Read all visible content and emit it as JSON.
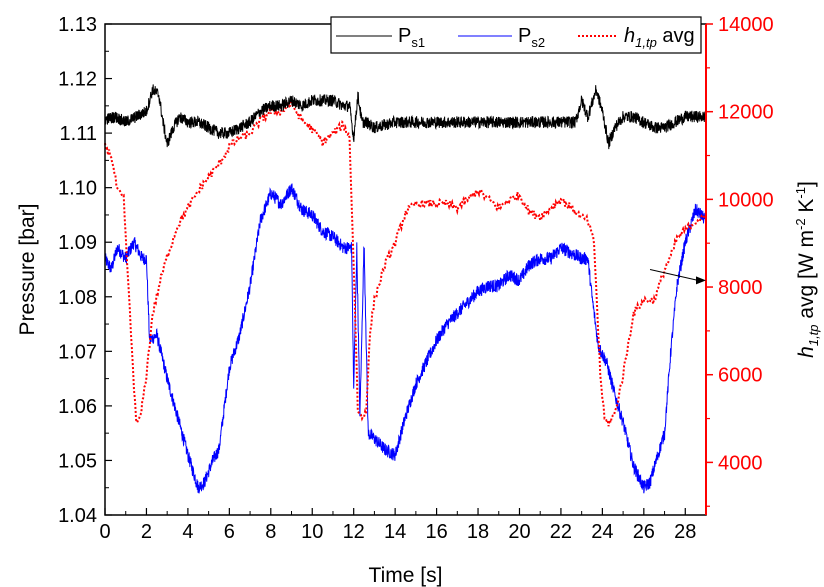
{
  "chart_data": {
    "type": "line",
    "xlabel": "Time [s]",
    "ylabel_left": "Pressure [bar]",
    "ylabel_right": {
      "base": "h",
      "sub": "1,tp",
      "mid": " avg [W m",
      "sup1": "-2",
      "mid2": " K",
      "sup2": "-1",
      "end": "]"
    },
    "xlim": [
      0,
      29
    ],
    "xticks": [
      "0",
      "2",
      "4",
      "6",
      "8",
      "10",
      "12",
      "14",
      "16",
      "18",
      "20",
      "22",
      "24",
      "26",
      "28"
    ],
    "ylim_left": [
      1.04,
      1.13
    ],
    "yticks_left": [
      "1.04",
      "1.05",
      "1.06",
      "1.07",
      "1.08",
      "1.09",
      "1.10",
      "1.11",
      "1.12",
      "1.13"
    ],
    "ylim_right": [
      2800,
      14000
    ],
    "yticks_right": [
      "4000",
      "6000",
      "8000",
      "10000",
      "12000",
      "14000"
    ],
    "colors": {
      "ps1": "#000000",
      "ps2": "#0000ff",
      "h": "#ff0000",
      "axis": "#000000",
      "right_axis": "#ff0000"
    },
    "legend": {
      "placement": "top-right",
      "items": [
        {
          "base": "P",
          "sub": "s1"
        },
        {
          "base": "P",
          "sub": "s2"
        },
        {
          "base": "h",
          "sub": "1,tp",
          "suffix": " avg"
        }
      ]
    },
    "series": [
      {
        "name": "Ps1",
        "axis": "left",
        "points": [
          [
            0,
            1.1125
          ],
          [
            0.5,
            1.113
          ],
          [
            1,
            1.112
          ],
          [
            1.5,
            1.113
          ],
          [
            2,
            1.114
          ],
          [
            2.3,
            1.118
          ],
          [
            2.6,
            1.117
          ],
          [
            2.8,
            1.112
          ],
          [
            3.0,
            1.108
          ],
          [
            3.3,
            1.111
          ],
          [
            3.6,
            1.113
          ],
          [
            4,
            1.112
          ],
          [
            4.5,
            1.112
          ],
          [
            5,
            1.111
          ],
          [
            5.5,
            1.11
          ],
          [
            6,
            1.11
          ],
          [
            6.5,
            1.111
          ],
          [
            7,
            1.112
          ],
          [
            7.5,
            1.114
          ],
          [
            8,
            1.115
          ],
          [
            8.5,
            1.115
          ],
          [
            9,
            1.116
          ],
          [
            9.5,
            1.115
          ],
          [
            10,
            1.116
          ],
          [
            10.5,
            1.116
          ],
          [
            11,
            1.116
          ],
          [
            11.5,
            1.115
          ],
          [
            11.8,
            1.115
          ],
          [
            12.0,
            1.109
          ],
          [
            12.2,
            1.117
          ],
          [
            12.4,
            1.112
          ],
          [
            12.6,
            1.112
          ],
          [
            13,
            1.111
          ],
          [
            14,
            1.112
          ],
          [
            15,
            1.112
          ],
          [
            16,
            1.112
          ],
          [
            17,
            1.112
          ],
          [
            18,
            1.112
          ],
          [
            19,
            1.112
          ],
          [
            20,
            1.112
          ],
          [
            21,
            1.112
          ],
          [
            22,
            1.112
          ],
          [
            22.7,
            1.112
          ],
          [
            23.0,
            1.116
          ],
          [
            23.3,
            1.113
          ],
          [
            23.7,
            1.118
          ],
          [
            24.0,
            1.114
          ],
          [
            24.3,
            1.108
          ],
          [
            24.6,
            1.111
          ],
          [
            25,
            1.113
          ],
          [
            25.5,
            1.113
          ],
          [
            26,
            1.112
          ],
          [
            26.5,
            1.111
          ],
          [
            27,
            1.111
          ],
          [
            27.5,
            1.112
          ],
          [
            28,
            1.113
          ],
          [
            28.5,
            1.113
          ],
          [
            29,
            1.113
          ]
        ]
      },
      {
        "name": "Ps2",
        "axis": "left",
        "points": [
          [
            0,
            1.087
          ],
          [
            0.3,
            1.085
          ],
          [
            0.6,
            1.089
          ],
          [
            1.0,
            1.087
          ],
          [
            1.4,
            1.09
          ],
          [
            1.8,
            1.087
          ],
          [
            2.0,
            1.087
          ],
          [
            2.15,
            1.072
          ],
          [
            2.5,
            1.073
          ],
          [
            3,
            1.065
          ],
          [
            3.5,
            1.058
          ],
          [
            4,
            1.051
          ],
          [
            4.5,
            1.045
          ],
          [
            4.8,
            1.046
          ],
          [
            5.2,
            1.05
          ],
          [
            5.5,
            1.052
          ],
          [
            6,
            1.067
          ],
          [
            6.5,
            1.073
          ],
          [
            7,
            1.082
          ],
          [
            7.5,
            1.094
          ],
          [
            8,
            1.099
          ],
          [
            8.5,
            1.097
          ],
          [
            9,
            1.1
          ],
          [
            9.5,
            1.096
          ],
          [
            10,
            1.095
          ],
          [
            10.5,
            1.092
          ],
          [
            11,
            1.091
          ],
          [
            11.5,
            1.089
          ],
          [
            11.9,
            1.089
          ],
          [
            12.0,
            1.063
          ],
          [
            12.15,
            1.089
          ],
          [
            12.3,
            1.058
          ],
          [
            12.5,
            1.09
          ],
          [
            12.7,
            1.055
          ],
          [
            13,
            1.054
          ],
          [
            13.5,
            1.052
          ],
          [
            14,
            1.051
          ],
          [
            14.5,
            1.058
          ],
          [
            15,
            1.064
          ],
          [
            15.5,
            1.068
          ],
          [
            16,
            1.072
          ],
          [
            16.5,
            1.075
          ],
          [
            17,
            1.077
          ],
          [
            17.5,
            1.079
          ],
          [
            18,
            1.081
          ],
          [
            18.5,
            1.082
          ],
          [
            19,
            1.082
          ],
          [
            19.5,
            1.084
          ],
          [
            20,
            1.083
          ],
          [
            20.5,
            1.086
          ],
          [
            21,
            1.087
          ],
          [
            21.5,
            1.087
          ],
          [
            22,
            1.089
          ],
          [
            22.5,
            1.088
          ],
          [
            23,
            1.087
          ],
          [
            23.3,
            1.087
          ],
          [
            23.5,
            1.08
          ],
          [
            23.8,
            1.071
          ],
          [
            24.2,
            1.068
          ],
          [
            24.6,
            1.062
          ],
          [
            25,
            1.057
          ],
          [
            25.5,
            1.049
          ],
          [
            26,
            1.045
          ],
          [
            26.3,
            1.046
          ],
          [
            26.6,
            1.05
          ],
          [
            27,
            1.055
          ],
          [
            27.3,
            1.07
          ],
          [
            27.6,
            1.082
          ],
          [
            28,
            1.09
          ],
          [
            28.5,
            1.096
          ],
          [
            29,
            1.094
          ]
        ]
      },
      {
        "name": "h1,tp avg",
        "axis": "right",
        "points": [
          [
            0,
            11200
          ],
          [
            0.3,
            11000
          ],
          [
            0.6,
            10200
          ],
          [
            0.9,
            10000
          ],
          [
            1.2,
            7400
          ],
          [
            1.5,
            4900
          ],
          [
            1.7,
            5000
          ],
          [
            2.0,
            6000
          ],
          [
            2.3,
            7400
          ],
          [
            2.7,
            8200
          ],
          [
            3.0,
            8700
          ],
          [
            3.5,
            9400
          ],
          [
            4.0,
            9800
          ],
          [
            4.5,
            10200
          ],
          [
            5.0,
            10500
          ],
          [
            5.5,
            10800
          ],
          [
            6.0,
            11200
          ],
          [
            6.5,
            11400
          ],
          [
            7.0,
            11500
          ],
          [
            7.5,
            11800
          ],
          [
            8.0,
            12000
          ],
          [
            8.5,
            12000
          ],
          [
            9.0,
            12200
          ],
          [
            9.5,
            11800
          ],
          [
            10.0,
            11600
          ],
          [
            10.5,
            11300
          ],
          [
            11.0,
            11500
          ],
          [
            11.5,
            11700
          ],
          [
            11.8,
            11400
          ],
          [
            12.0,
            8500
          ],
          [
            12.2,
            5200
          ],
          [
            12.4,
            5000
          ],
          [
            12.6,
            5200
          ],
          [
            12.8,
            7000
          ],
          [
            13.0,
            7700
          ],
          [
            13.5,
            8500
          ],
          [
            14,
            9000
          ],
          [
            14.5,
            9700
          ],
          [
            15,
            9900
          ],
          [
            15.5,
            9900
          ],
          [
            16,
            9900
          ],
          [
            16.5,
            9900
          ],
          [
            17,
            9800
          ],
          [
            17.5,
            10000
          ],
          [
            18,
            10200
          ],
          [
            18.5,
            10000
          ],
          [
            19,
            9800
          ],
          [
            19.5,
            10000
          ],
          [
            20,
            10100
          ],
          [
            20.5,
            9700
          ],
          [
            21,
            9600
          ],
          [
            21.5,
            9800
          ],
          [
            22,
            10000
          ],
          [
            22.5,
            9800
          ],
          [
            23,
            9600
          ],
          [
            23.3,
            9500
          ],
          [
            23.6,
            9000
          ],
          [
            23.9,
            6000
          ],
          [
            24.1,
            5000
          ],
          [
            24.3,
            4900
          ],
          [
            24.6,
            5100
          ],
          [
            25,
            6000
          ],
          [
            25.5,
            7400
          ],
          [
            26,
            7700
          ],
          [
            26.5,
            7700
          ],
          [
            27,
            8400
          ],
          [
            27.3,
            8700
          ],
          [
            27.6,
            9100
          ],
          [
            28,
            9300
          ],
          [
            28.5,
            9500
          ],
          [
            29,
            9600
          ]
        ]
      }
    ],
    "annotation_arrows": [
      {
        "from": [
          26.3,
          1.085
        ],
        "to": [
          29,
          1.083
        ]
      }
    ]
  }
}
